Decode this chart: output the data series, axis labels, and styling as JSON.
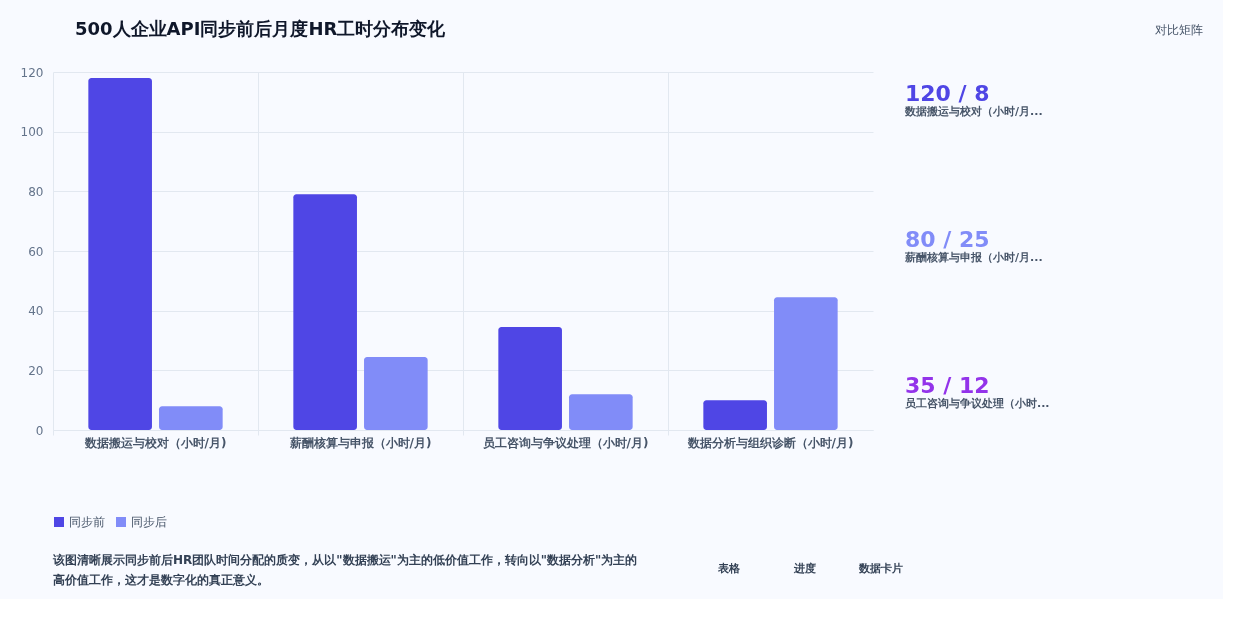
{
  "chart_data": [
    {
      "type": "bar",
      "title": "500人企业API同步前后月度HR工时分布变化",
      "categories": [
        "数据搬运与校对（小时/月)",
        "薪酬核算与申报（小时/月)",
        "员工咨询与争议处理（小时/月)",
        "数据分析与组织诊断（小时/月)"
      ],
      "series": [
        {
          "name": "同步前",
          "color": "#4f46e5",
          "values": [
            118,
            79,
            34.5,
            10
          ]
        },
        {
          "name": "同步后",
          "color": "#818cf8",
          "values": [
            8,
            24.5,
            12,
            44.5
          ]
        }
      ],
      "ylim": [
        0,
        120
      ],
      "yticks": [
        0,
        20,
        40,
        60,
        80,
        100,
        120
      ],
      "grid": true,
      "legend": "bottom",
      "annotations": [
        "该图清晰展示同步前后HR团队时间分配的质变，从以\"数据搬运\"为主的低价值工作，转向以\"数据分析\"为主的高价值工作，这才是数字化的真正意义。"
      ]
    },
    {
      "type": "other",
      "annotations": [
        "120 / 8",
        "数据搬运与校对（小时/月...",
        "80 / 25",
        "薪酬核算与申报（小时/月...",
        "35 / 12",
        "员工咨询与争议处理（小时...",
        "表格",
        "进度",
        "数据卡片",
        "对比矩阵"
      ]
    }
  ]
}
